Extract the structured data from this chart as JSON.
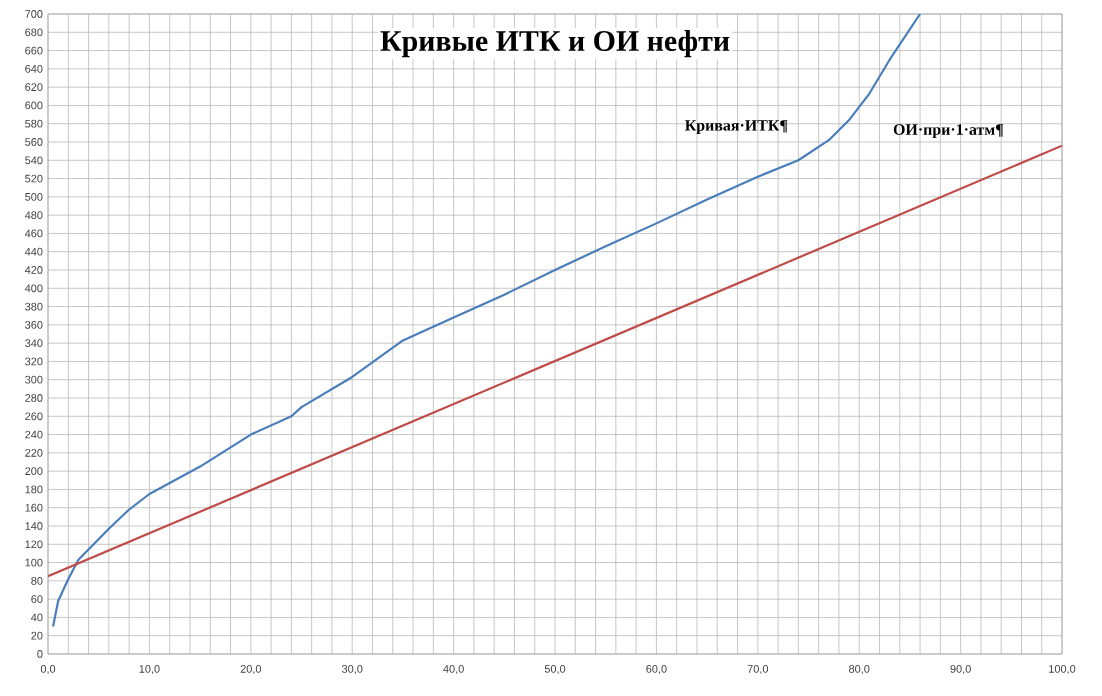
{
  "chart_data": {
    "type": "line",
    "title": "Кривые ИТК и ОИ нефти",
    "xlim": [
      0,
      100
    ],
    "ylim": [
      0,
      700
    ],
    "xticks": [
      {
        "value": 0,
        "label": "0,0"
      },
      {
        "value": 10,
        "label": "10,0"
      },
      {
        "value": 20,
        "label": "20,0"
      },
      {
        "value": 30,
        "label": "30,0"
      },
      {
        "value": 40,
        "label": "40,0"
      },
      {
        "value": 50,
        "label": "50,0"
      },
      {
        "value": 60,
        "label": "60,0"
      },
      {
        "value": 70,
        "label": "70,0"
      },
      {
        "value": 80,
        "label": "80,0"
      },
      {
        "value": 90,
        "label": "90,0"
      },
      {
        "value": 100,
        "label": "100,0"
      }
    ],
    "yticks": [
      0,
      20,
      40,
      60,
      80,
      100,
      120,
      140,
      160,
      180,
      200,
      220,
      240,
      260,
      280,
      300,
      320,
      340,
      360,
      380,
      400,
      420,
      440,
      460,
      480,
      500,
      520,
      540,
      560,
      580,
      600,
      620,
      640,
      660,
      680,
      700
    ],
    "grid": true,
    "legend": false,
    "marker": "none",
    "line_style": "solid",
    "series": [
      {
        "name": "Кривая·ИТК¶",
        "color": "#4a7ebb",
        "x": [
          0.5,
          1,
          2,
          3,
          4.5,
          6,
          8,
          10,
          15,
          20,
          24,
          25,
          30,
          35,
          40,
          45,
          50,
          55,
          60,
          65,
          70,
          74,
          77,
          79,
          81,
          83,
          86
        ],
        "values": [
          30,
          58,
          82,
          103,
          120,
          137,
          158,
          175,
          205,
          240,
          260,
          270,
          303,
          343,
          368,
          393,
          420,
          446,
          471,
          497,
          522,
          540,
          562,
          584,
          613,
          650,
          700
        ]
      },
      {
        "name": "ОИ·при·1·атм¶",
        "color": "#be4b48",
        "x": [
          0,
          100
        ],
        "values": [
          85,
          556
        ]
      }
    ]
  }
}
